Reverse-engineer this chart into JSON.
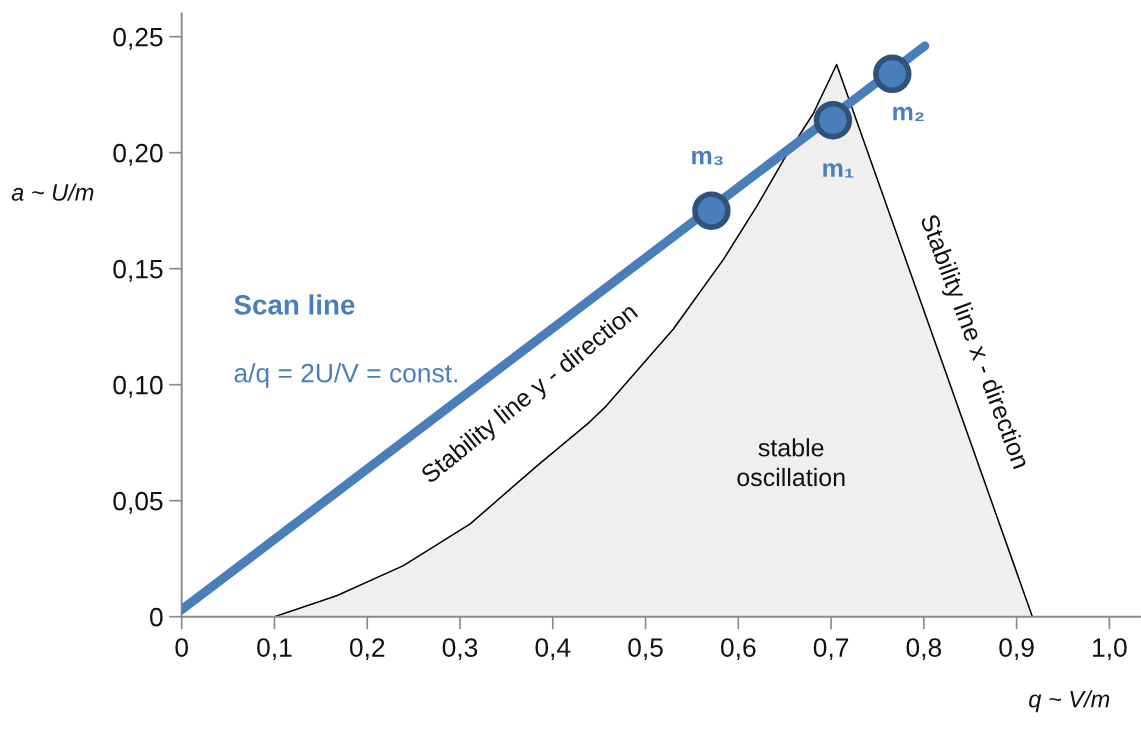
{
  "chart_data": {
    "type": "line",
    "xlabel": "q ~ V/m",
    "ylabel": "a ~ U/m",
    "xlim": [
      0,
      1.033
    ],
    "ylim": [
      0,
      0.26
    ],
    "xticks": [
      0,
      {
        "value": 0.1,
        "label": "0,1"
      },
      {
        "value": 0.2,
        "label": "0,2"
      },
      {
        "value": 0.3,
        "label": "0,3"
      },
      {
        "value": 0.4,
        "label": "0,4"
      },
      {
        "value": 0.5,
        "label": "0,5"
      },
      {
        "value": 0.6,
        "label": "0,6"
      },
      {
        "value": 0.7,
        "label": "0,7"
      },
      {
        "value": 0.8,
        "label": "0,8"
      },
      {
        "value": 0.9,
        "label": "0,9"
      },
      {
        "value": 1.0,
        "label": "1,0"
      }
    ],
    "yticks": [
      0,
      {
        "value": 0.05,
        "label": "0,05"
      },
      {
        "value": 0.1,
        "label": "0,10"
      },
      {
        "value": 0.15,
        "label": "0,15"
      },
      {
        "value": 0.2,
        "label": "0,20"
      },
      {
        "value": 0.25,
        "label": "0,25"
      }
    ],
    "series": [
      {
        "type": "area",
        "color": "#efefef",
        "x": [
          0.1,
          0.167,
          0.239,
          0.311,
          0.383,
          0.44,
          0.458,
          0.53,
          0.584,
          0.62,
          0.649,
          0.681,
          0.706,
          0.917
        ],
        "values": [
          0,
          0.009,
          0.022,
          0.04,
          0.065,
          0.084,
          0.091,
          0.124,
          0.154,
          0.177,
          0.197,
          0.217,
          0.238,
          0
        ]
      },
      {
        "name": "Scan line",
        "color": "#4a7ebb",
        "x": [
          0,
          0.801
        ],
        "values": [
          0.003,
          0.246
        ]
      },
      {
        "type": "scatter",
        "color": "#4a7ebb",
        "marker": "circle",
        "x": [
          0.702,
          0.766,
          0.571
        ],
        "values": [
          0.214,
          0.234,
          0.175
        ]
      }
    ],
    "annotations": [
      "a/q = 2U/V = const.",
      "Stability line y - direction",
      "Stability line x - direction",
      "stable\noscillation",
      {
        "text": "m₁",
        "x": 0.702,
        "y": 0.214
      },
      {
        "text": "m₂",
        "x": 0.766,
        "y": 0.234
      },
      {
        "text": "m₃",
        "x": 0.571,
        "y": 0.175
      }
    ]
  }
}
